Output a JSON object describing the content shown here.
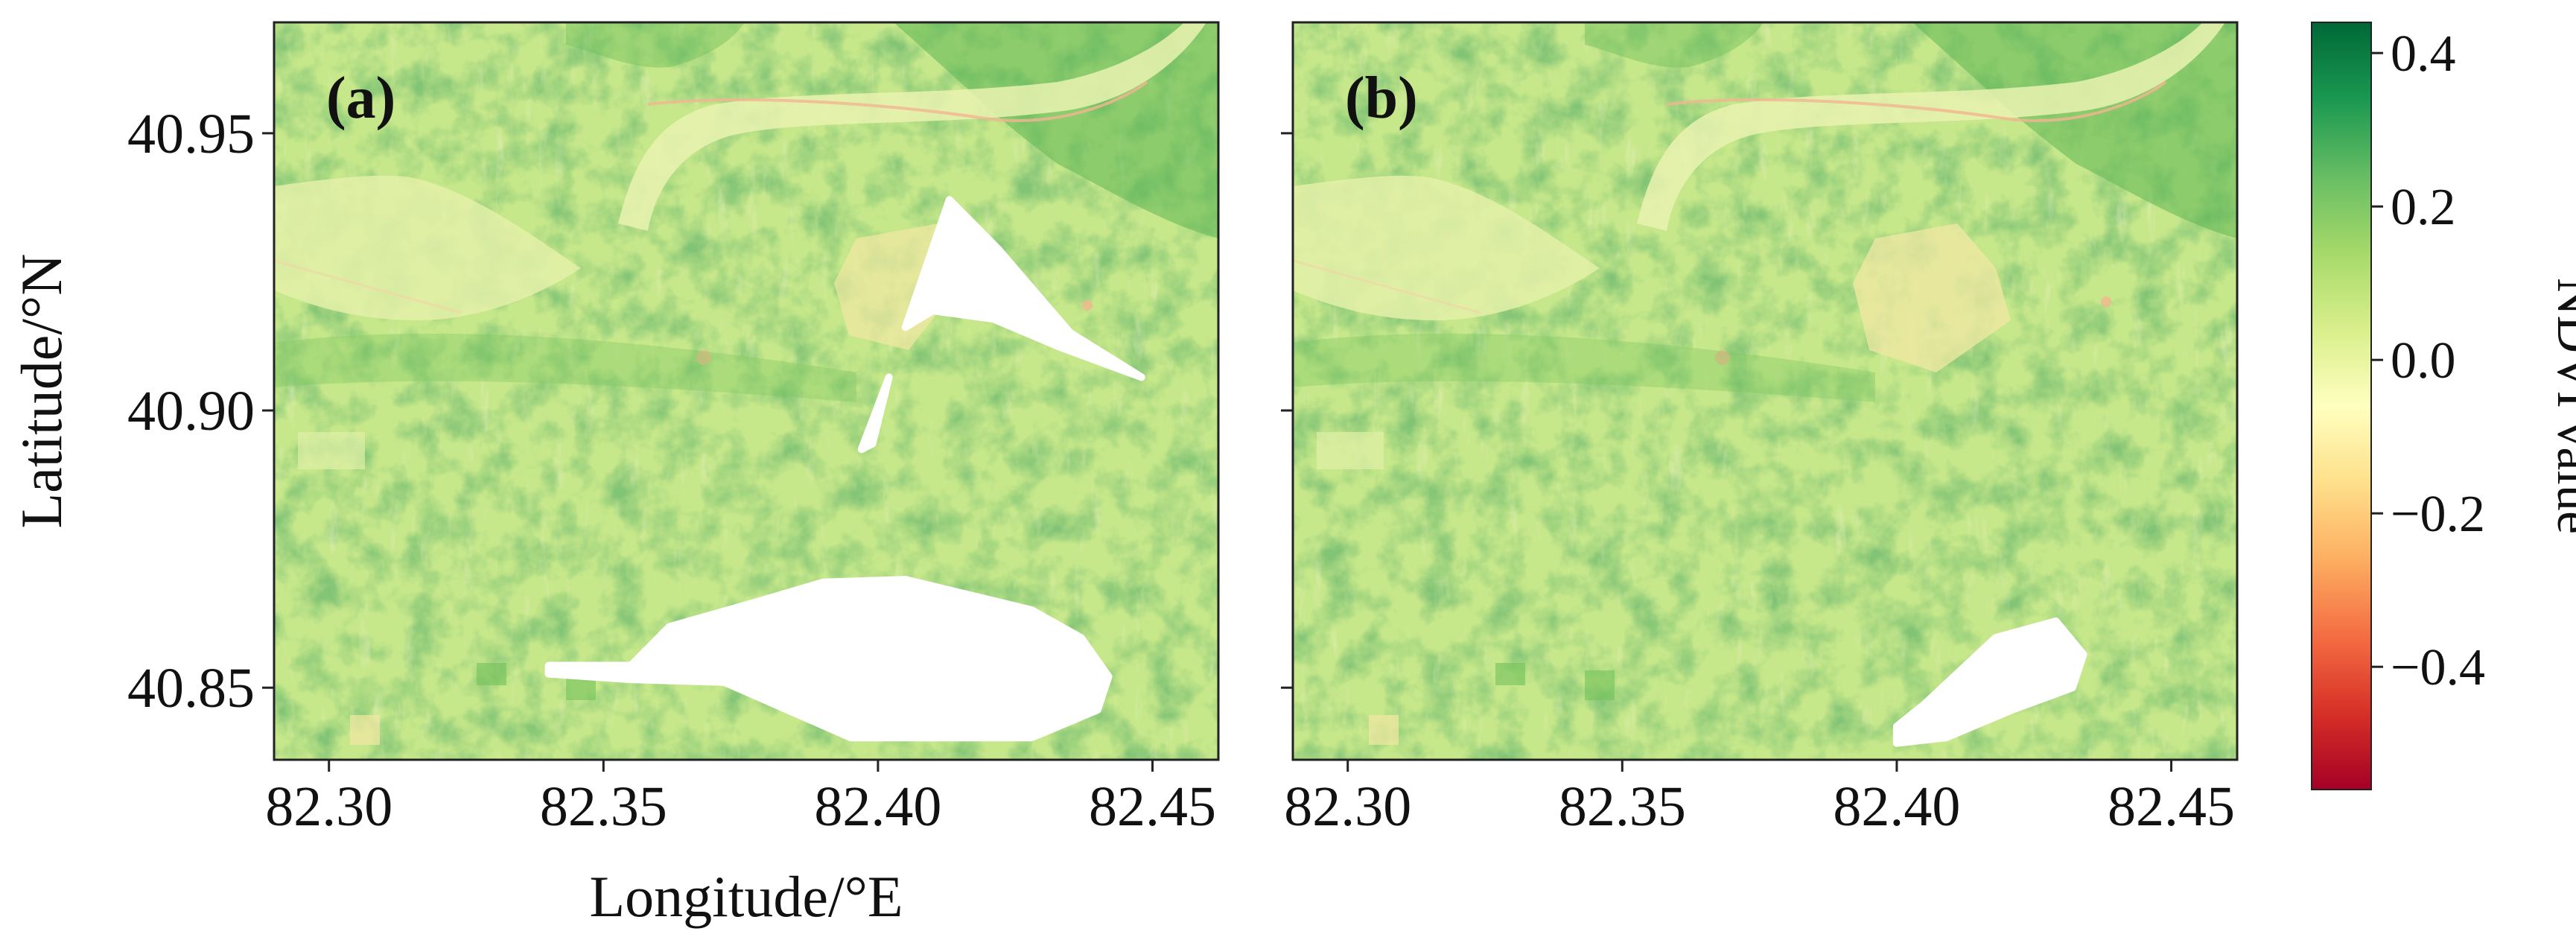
{
  "chart_data": [
    {
      "type": "heatmap",
      "panel_label": "(a)",
      "xlabel": "Longitude/°E",
      "ylabel": "Latitude/°N",
      "xlim": [
        82.29,
        82.462
      ],
      "ylim": [
        40.837,
        40.97
      ],
      "xticks": [
        82.3,
        82.35,
        82.4,
        82.45
      ],
      "xtick_labels": [
        "82.30",
        "82.35",
        "82.40",
        "82.45"
      ],
      "yticks": [
        40.85,
        40.9,
        40.95
      ],
      "ytick_labels": [
        "40.85",
        "40.90",
        "40.95"
      ],
      "no_data_regions": [
        {
          "name": "large no-data area (south)",
          "lon": [
            82.34,
            82.355,
            82.372,
            82.395,
            82.428,
            82.44,
            82.442,
            82.437,
            82.428,
            82.405,
            82.39,
            82.378,
            82.362,
            82.355,
            82.34
          ],
          "lat": [
            40.8525,
            40.8515,
            40.851,
            40.841,
            40.841,
            40.846,
            40.852,
            40.859,
            40.864,
            40.8695,
            40.869,
            40.8655,
            40.861,
            40.854,
            40.854
          ]
        },
        {
          "name": "no-data patch (north)",
          "lon": [
            82.405,
            82.413,
            82.422,
            82.435,
            82.448,
            82.433,
            82.421,
            82.41
          ],
          "lat": [
            40.915,
            40.938,
            40.929,
            40.914,
            40.906,
            40.9115,
            40.9165,
            40.918
          ]
        },
        {
          "name": "small no-data sliver",
          "lon": [
            82.397,
            82.402,
            82.399
          ],
          "lat": [
            40.893,
            40.906,
            40.894
          ]
        }
      ]
    },
    {
      "type": "heatmap",
      "panel_label": "(b)",
      "xlim": [
        82.29,
        82.462
      ],
      "ylim": [
        40.837,
        40.97
      ],
      "xticks": [
        82.3,
        82.35,
        82.4,
        82.45
      ],
      "xtick_labels": [
        "82.30",
        "82.35",
        "82.40",
        "82.45"
      ],
      "yticks": [
        40.85,
        40.9,
        40.95
      ],
      "ytick_labels": [
        "",
        "",
        ""
      ],
      "no_data_regions": [
        {
          "name": "no-data area (south)",
          "lon": [
            82.4,
            82.409,
            82.421,
            82.432,
            82.434,
            82.429,
            82.418,
            82.405,
            82.4
          ],
          "lat": [
            40.84,
            40.841,
            40.846,
            40.85,
            40.856,
            40.862,
            40.859,
            40.847,
            40.843
          ]
        }
      ]
    }
  ],
  "colorbar": {
    "label": "NDVI value",
    "range": [
      -0.56,
      0.44
    ],
    "ticks": [
      0.4,
      0.2,
      0.0,
      -0.2,
      -0.4
    ],
    "tick_labels": [
      "0.4",
      "0.2",
      "0.0",
      "−0.2",
      "−0.4"
    ],
    "colormap": "RdYlGn",
    "colors": [
      "#a50026",
      "#d73027",
      "#f46d43",
      "#fdae61",
      "#fee08b",
      "#ffffbf",
      "#d9ef8b",
      "#a6d96a",
      "#66bd63",
      "#1a9850",
      "#006837"
    ]
  },
  "colors": {
    "background_field": "#c6e78a",
    "vegetation_dense": "#6fbf5a",
    "vegetation_mid": "#93d06b",
    "river_band": "#d9ef9c",
    "bare_soil": "#f2e8a4",
    "no_data": "#ffffff"
  }
}
